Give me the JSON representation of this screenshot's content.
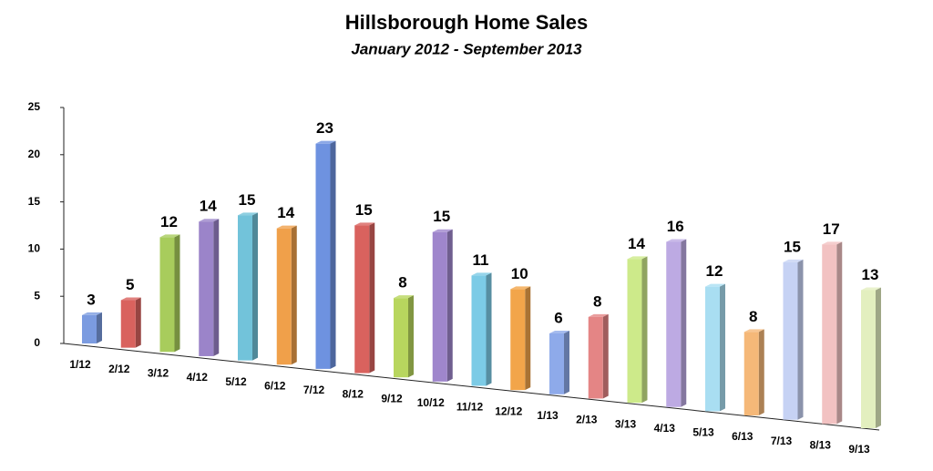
{
  "chart_data": {
    "type": "bar3d",
    "title": "Hillsborough Home Sales",
    "subtitle": "January 2012 - September 2013",
    "categories": [
      "1/12",
      "2/12",
      "3/12",
      "4/12",
      "5/12",
      "6/12",
      "7/12",
      "8/12",
      "9/12",
      "10/12",
      "11/12",
      "12/12",
      "1/13",
      "2/13",
      "3/13",
      "4/13",
      "5/13",
      "6/13",
      "7/13",
      "8/13",
      "9/13"
    ],
    "values": [
      3,
      5,
      12,
      14,
      15,
      14,
      23,
      15,
      8,
      15,
      11,
      10,
      6,
      8,
      14,
      16,
      12,
      8,
      15,
      17,
      13
    ],
    "colors": [
      "#7b9be0",
      "#d9625e",
      "#a8cc5c",
      "#9b84c9",
      "#72c3da",
      "#f0a04a",
      "#6e92e0",
      "#d9625e",
      "#b8d65e",
      "#9f86cc",
      "#7ccbe6",
      "#f2a54a",
      "#8eaaea",
      "#e48585",
      "#cdea8a",
      "#bdaae3",
      "#a9def2",
      "#f5b878",
      "#c6d2f4",
      "#f2c2c2",
      "#e3efbf"
    ],
    "ylim": [
      0,
      25
    ],
    "yticks": [
      0,
      5,
      10,
      15,
      20,
      25
    ]
  }
}
